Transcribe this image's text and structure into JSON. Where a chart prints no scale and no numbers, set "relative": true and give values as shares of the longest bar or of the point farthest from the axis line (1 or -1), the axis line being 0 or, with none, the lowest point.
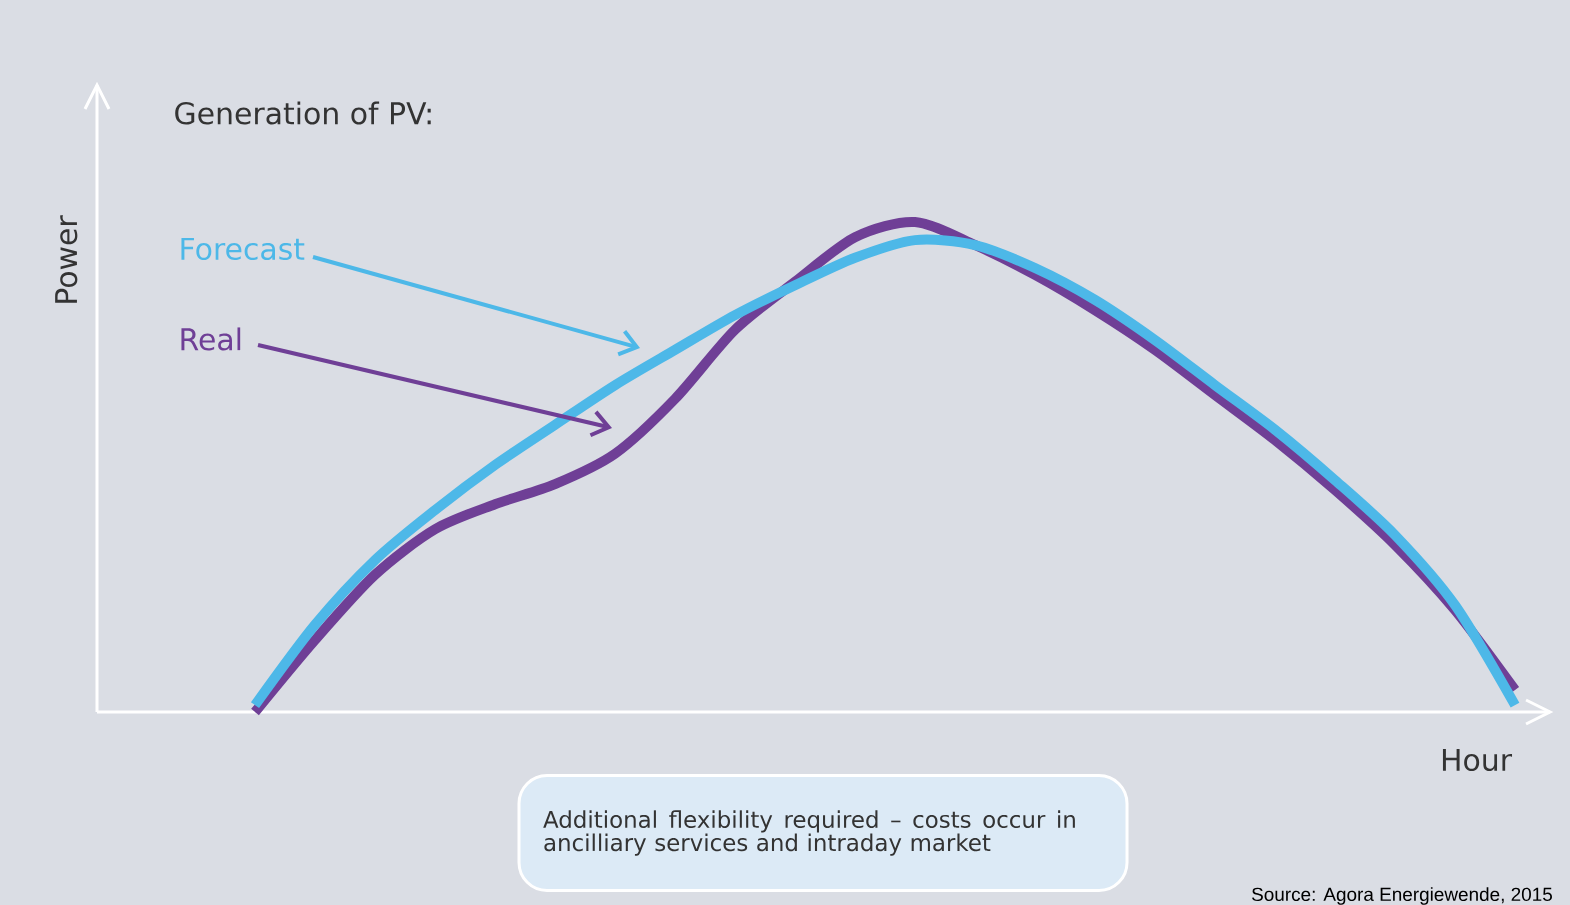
{
  "chart_data": {
    "type": "line",
    "relative": true,
    "title": "Generation of PV:",
    "ylabel": "Power",
    "xlabel": "Hour",
    "categories": [
      null,
      null,
      null,
      null,
      null,
      null,
      null,
      null,
      null,
      null,
      null,
      null,
      null,
      null,
      null,
      null,
      null,
      null,
      null,
      null,
      null,
      null
    ],
    "series": [
      {
        "name": "Forecast",
        "color": "#4db8e8",
        "values": [
          0.014,
          0.178,
          0.31,
          0.412,
          0.504,
          0.586,
          0.667,
          0.739,
          0.81,
          0.871,
          0.927,
          0.963,
          0.953,
          0.906,
          0.841,
          0.759,
          0.667,
          0.576,
          0.473,
          0.361,
          0.218,
          0.014
        ]
      },
      {
        "name": "Real",
        "color": "#6f3f96",
        "values": [
          0,
          0.147,
          0.28,
          0.373,
          0.424,
          0.465,
          0.527,
          0.639,
          0.78,
          0.878,
          0.969,
          1,
          0.953,
          0.892,
          0.82,
          0.739,
          0.647,
          0.555,
          0.453,
          0.341,
          0.208,
          0.045
        ]
      }
    ],
    "annotations": [
      "Additional flexibility required – costs occur in ancilliary services and intraday market",
      "Source: Agora Energiewende, 2015"
    ]
  }
}
